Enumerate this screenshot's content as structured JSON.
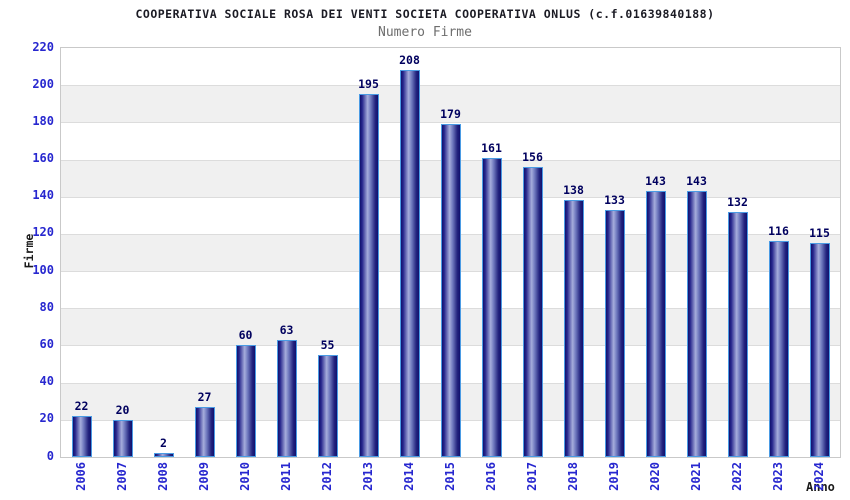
{
  "header": {
    "title": "COOPERATIVA SOCIALE ROSA DEI VENTI SOCIETA COOPERATIVA ONLUS (c.f.01639840188)",
    "subtitle": "Numero Firme"
  },
  "chart_data": {
    "type": "bar",
    "title": "COOPERATIVA SOCIALE ROSA DEI VENTI SOCIETA COOPERATIVA ONLUS (c.f.01639840188)",
    "subtitle": "Numero Firme",
    "categories": [
      "2006",
      "2007",
      "2008",
      "2009",
      "2010",
      "2011",
      "2012",
      "2013",
      "2014",
      "2015",
      "2016",
      "2017",
      "2018",
      "2019",
      "2020",
      "2021",
      "2022",
      "2023",
      "2024"
    ],
    "values": [
      22,
      20,
      2,
      27,
      60,
      63,
      55,
      195,
      208,
      179,
      161,
      156,
      138,
      133,
      143,
      143,
      132,
      116,
      115
    ],
    "xlabel": "Anno",
    "ylabel": "Firme",
    "ylim": [
      0,
      220
    ],
    "ytick_step": 20,
    "yticks": [
      0,
      20,
      40,
      60,
      80,
      100,
      120,
      140,
      160,
      180,
      200,
      220
    ],
    "grid": "alternating horizontal bands every 20 units, light gray gridlines",
    "legend": "none",
    "bar_labels_shown": true,
    "colors": {
      "bar_dark": "#11116e",
      "bar_mid": "#6d77bd",
      "bar_highlight": "#a6addc",
      "bar_border": "#4a9be4",
      "band_fill": "#f0f0f0",
      "gridline": "#dcdcdc",
      "plot_border": "#c9c9c9",
      "axis_tick_label": "#2727cf",
      "value_label": "#00005e",
      "title": "#1b1b24",
      "subtitle": "#6e6e6e",
      "axis_title": "#1a1a1a",
      "background": "#ffffff"
    }
  }
}
